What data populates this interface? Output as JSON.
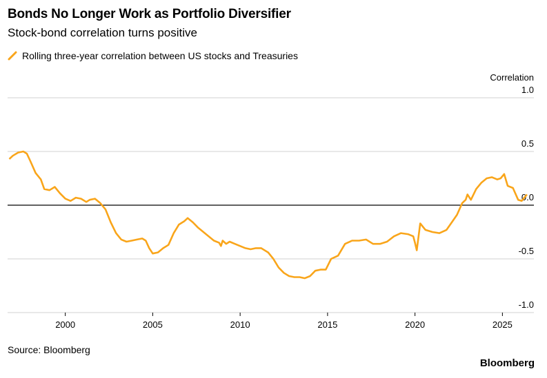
{
  "header": {
    "title": "Bonds No Longer Work as Portfolio Diversifier",
    "subtitle": "Stock-bond correlation turns positive"
  },
  "legend": {
    "label": "Rolling three-year correlation between US stocks and Treasuries",
    "color": "#f9a51a"
  },
  "footer": {
    "source": "Source: Bloomberg",
    "brand": "Bloomberg"
  },
  "chart_data": {
    "type": "line",
    "title": "Bonds No Longer Work as Portfolio Diversifier",
    "subtitle": "Stock-bond correlation turns positive",
    "ylabel": "Correlation",
    "xlim": [
      1996.7,
      2026.8
    ],
    "ylim": [
      -1.0,
      1.0
    ],
    "y_ticks": [
      1.0,
      0.5,
      0.0,
      -0.5,
      -1.0
    ],
    "y_tick_labels": [
      "1.0",
      "0.5",
      "0.0",
      "-0.5",
      "-1.0"
    ],
    "x_ticks": [
      2000,
      2005,
      2010,
      2015,
      2020,
      2025
    ],
    "x_tick_labels": [
      "2000",
      "2005",
      "2010",
      "2015",
      "2020",
      "2025"
    ],
    "grid": true,
    "legend_position": "top-left",
    "series": [
      {
        "name": "Rolling three-year correlation between US stocks and Treasuries",
        "color": "#f9a51a",
        "x": [
          1996.8,
          1997.0,
          1997.3,
          1997.6,
          1997.8,
          1998.0,
          1998.3,
          1998.6,
          1998.8,
          1999.1,
          1999.4,
          1999.7,
          2000.0,
          2000.3,
          2000.6,
          2000.9,
          2001.2,
          2001.4,
          2001.7,
          2002.0,
          2002.3,
          2002.6,
          2002.9,
          2003.2,
          2003.5,
          2003.8,
          2004.1,
          2004.4,
          2004.6,
          2004.8,
          2005.0,
          2005.3,
          2005.6,
          2005.9,
          2006.2,
          2006.5,
          2006.8,
          2007.0,
          2007.3,
          2007.6,
          2007.9,
          2008.2,
          2008.5,
          2008.8,
          2008.9,
          2009.0,
          2009.2,
          2009.4,
          2009.7,
          2010.0,
          2010.3,
          2010.6,
          2010.9,
          2011.2,
          2011.6,
          2011.9,
          2012.2,
          2012.5,
          2012.8,
          2013.1,
          2013.4,
          2013.7,
          2014.0,
          2014.3,
          2014.6,
          2014.9,
          2015.2,
          2015.6,
          2016.0,
          2016.4,
          2016.8,
          2017.2,
          2017.6,
          2018.0,
          2018.4,
          2018.8,
          2019.2,
          2019.6,
          2019.9,
          2020.0,
          2020.1,
          2020.3,
          2020.6,
          2021.0,
          2021.4,
          2021.8,
          2022.1,
          2022.4,
          2022.7,
          2022.9,
          2023.0,
          2023.2,
          2023.5,
          2023.8,
          2024.1,
          2024.4,
          2024.7,
          2024.9,
          2025.1,
          2025.3,
          2025.6,
          2025.9,
          2026.1,
          2026.4
        ],
        "values": [
          0.43,
          0.46,
          0.49,
          0.5,
          0.48,
          0.41,
          0.3,
          0.24,
          0.15,
          0.14,
          0.17,
          0.11,
          0.06,
          0.04,
          0.07,
          0.06,
          0.03,
          0.05,
          0.06,
          0.02,
          -0.04,
          -0.16,
          -0.26,
          -0.32,
          -0.34,
          -0.33,
          -0.32,
          -0.31,
          -0.33,
          -0.4,
          -0.45,
          -0.44,
          -0.4,
          -0.37,
          -0.26,
          -0.18,
          -0.15,
          -0.12,
          -0.16,
          -0.21,
          -0.25,
          -0.29,
          -0.33,
          -0.35,
          -0.38,
          -0.33,
          -0.36,
          -0.34,
          -0.36,
          -0.38,
          -0.4,
          -0.41,
          -0.4,
          -0.4,
          -0.44,
          -0.5,
          -0.58,
          -0.63,
          -0.66,
          -0.67,
          -0.67,
          -0.68,
          -0.66,
          -0.61,
          -0.6,
          -0.6,
          -0.5,
          -0.47,
          -0.36,
          -0.33,
          -0.33,
          -0.32,
          -0.36,
          -0.36,
          -0.34,
          -0.29,
          -0.26,
          -0.27,
          -0.29,
          -0.35,
          -0.42,
          -0.17,
          -0.23,
          -0.25,
          -0.26,
          -0.23,
          -0.16,
          -0.09,
          0.02,
          0.05,
          0.1,
          0.05,
          0.15,
          0.21,
          0.25,
          0.26,
          0.24,
          0.25,
          0.29,
          0.18,
          0.16,
          0.05,
          0.04,
          0.1
        ]
      }
    ]
  }
}
